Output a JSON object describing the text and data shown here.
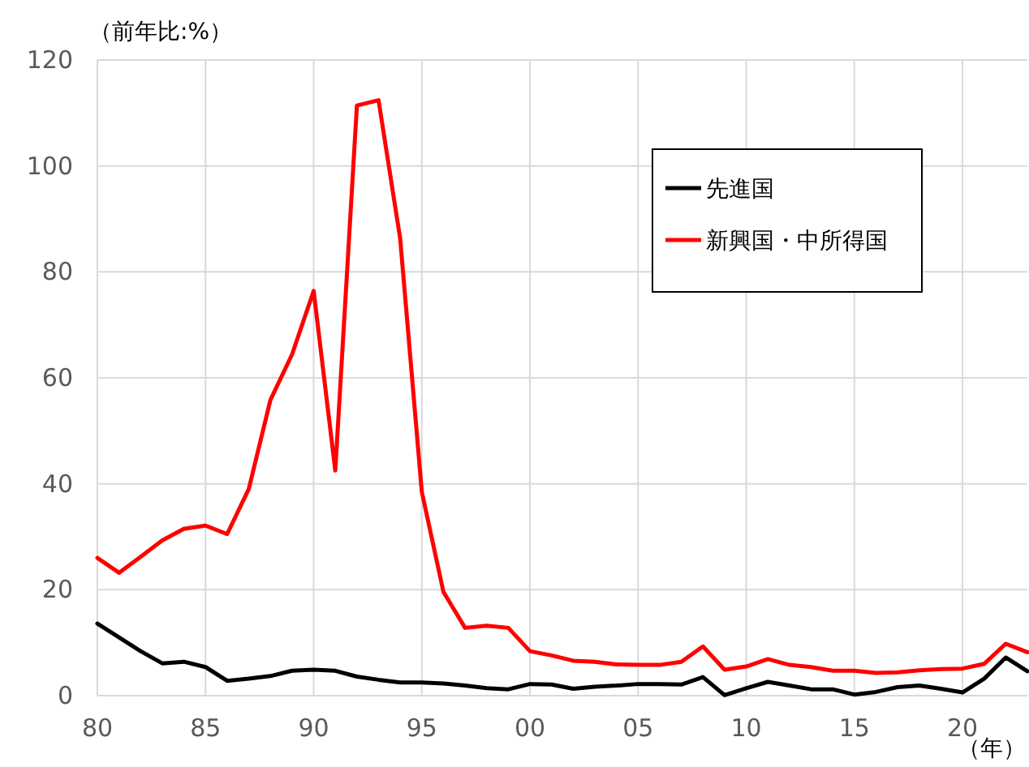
{
  "chart_data": {
    "type": "line",
    "ylabel": "（前年比:%）",
    "xlabel": "（年）",
    "x": [
      1980,
      1981,
      1982,
      1983,
      1984,
      1985,
      1986,
      1987,
      1988,
      1989,
      1990,
      1991,
      1992,
      1993,
      1994,
      1995,
      1996,
      1997,
      1998,
      1999,
      2000,
      2001,
      2002,
      2003,
      2004,
      2005,
      2006,
      2007,
      2008,
      2009,
      2010,
      2011,
      2012,
      2013,
      2014,
      2015,
      2016,
      2017,
      2018,
      2019,
      2020,
      2021,
      2022,
      2023
    ],
    "series": [
      {
        "name": "先進国",
        "color": "#000000",
        "values": [
          13.6,
          11.0,
          8.4,
          6.1,
          6.4,
          5.4,
          2.8,
          3.2,
          3.7,
          4.7,
          4.9,
          4.7,
          3.6,
          3.0,
          2.5,
          2.5,
          2.3,
          1.9,
          1.4,
          1.2,
          2.2,
          2.1,
          1.3,
          1.7,
          1.9,
          2.2,
          2.2,
          2.1,
          3.5,
          0.1,
          1.4,
          2.6,
          1.9,
          1.2,
          1.2,
          0.2,
          0.7,
          1.6,
          1.9,
          1.3,
          0.6,
          3.2,
          7.2,
          4.6
        ]
      },
      {
        "name": "新興国・中所得国",
        "color": "#ff0000",
        "values": [
          26.0,
          23.2,
          26.2,
          29.3,
          31.5,
          32.1,
          30.5,
          39.0,
          55.8,
          64.4,
          76.4,
          42.5,
          111.4,
          112.4,
          86.3,
          38.5,
          19.6,
          12.8,
          13.2,
          12.8,
          8.4,
          7.6,
          6.6,
          6.4,
          5.9,
          5.8,
          5.8,
          6.4,
          9.3,
          4.9,
          5.5,
          6.9,
          5.8,
          5.4,
          4.7,
          4.7,
          4.3,
          4.4,
          4.8,
          5.0,
          5.1,
          6.0,
          9.8,
          8.2
        ]
      }
    ],
    "xlim": [
      1980,
      2023
    ],
    "xticks": [
      {
        "value": 1980,
        "label": "80"
      },
      {
        "value": 1985,
        "label": "85"
      },
      {
        "value": 1990,
        "label": "90"
      },
      {
        "value": 1995,
        "label": "95"
      },
      {
        "value": 2000,
        "label": "00"
      },
      {
        "value": 2005,
        "label": "05"
      },
      {
        "value": 2010,
        "label": "10"
      },
      {
        "value": 2015,
        "label": "15"
      },
      {
        "value": 2020,
        "label": "20"
      }
    ],
    "ylim": [
      0,
      120
    ],
    "yticks": [
      0,
      20,
      40,
      60,
      80,
      100,
      120
    ],
    "grid": true,
    "legend": "top right",
    "line_style": "solid",
    "marker": "none"
  }
}
